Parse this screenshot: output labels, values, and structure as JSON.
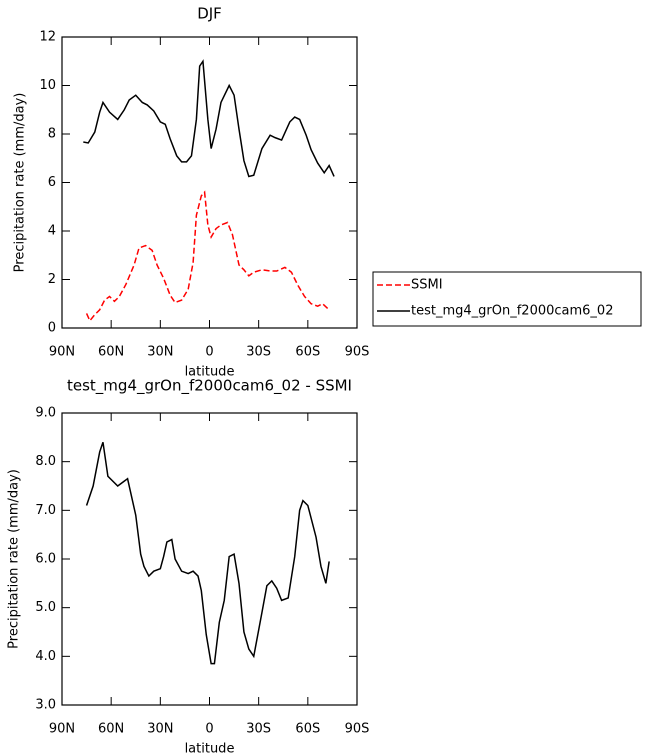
{
  "chart_data": [
    {
      "type": "line",
      "title": "DJF",
      "xlabel": "latitude",
      "ylabel": "Precipitation rate (mm/day)",
      "xlim": [
        90,
        -90
      ],
      "xticks": [
        {
          "value": 90,
          "label": "90N"
        },
        {
          "value": 60,
          "label": "60N"
        },
        {
          "value": 30,
          "label": "30N"
        },
        0,
        {
          "value": -30,
          "label": "30S"
        },
        {
          "value": -60,
          "label": "60S"
        },
        {
          "value": -90,
          "label": "90S"
        }
      ],
      "ylim": [
        0,
        12
      ],
      "yticks": [
        0,
        2,
        4,
        6,
        8,
        10,
        12
      ],
      "legend": "right",
      "series": [
        {
          "name": "SSMI",
          "color": "#ff0000",
          "dash": true,
          "x": [
            75,
            73,
            70,
            67,
            64,
            61,
            58,
            55,
            51,
            46,
            43,
            39,
            35,
            32,
            28,
            24,
            21,
            17,
            13,
            10,
            8,
            5,
            3,
            1,
            -1,
            -4,
            -7,
            -11,
            -14,
            -18,
            -21,
            -24,
            -27,
            -32,
            -37,
            -41,
            -46,
            -50,
            -54,
            -58,
            -62,
            -66,
            -69,
            -73
          ],
          "values": [
            0.6,
            0.3,
            0.55,
            0.75,
            1.15,
            1.3,
            1.1,
            1.3,
            1.8,
            2.6,
            3.3,
            3.4,
            3.2,
            2.6,
            2.05,
            1.35,
            1.05,
            1.15,
            1.6,
            2.7,
            4.65,
            5.45,
            5.6,
            4.25,
            3.75,
            4.1,
            4.25,
            4.35,
            3.85,
            2.6,
            2.4,
            2.15,
            2.3,
            2.4,
            2.35,
            2.35,
            2.5,
            2.3,
            1.75,
            1.3,
            1.0,
            0.9,
            1.0,
            0.75
          ]
        },
        {
          "name": "test_mg4_grOn_f2000cam6_02",
          "color": "#000000",
          "x": [
            77,
            74,
            70,
            67,
            65,
            61,
            56,
            52,
            49,
            45,
            41,
            38,
            34,
            30,
            27,
            24,
            20,
            17,
            14,
            11,
            8,
            6,
            4,
            1,
            -1,
            -4,
            -7,
            -12,
            -15,
            -18,
            -21,
            -24,
            -27,
            -32,
            -37,
            -40,
            -44,
            -49,
            -52,
            -55,
            -59,
            -62,
            -66,
            -70,
            -73,
            -76
          ],
          "values": [
            7.67,
            7.63,
            8.08,
            8.9,
            9.3,
            8.9,
            8.6,
            9.0,
            9.4,
            9.6,
            9.3,
            9.2,
            8.95,
            8.5,
            8.4,
            7.8,
            7.1,
            6.85,
            6.85,
            7.1,
            8.6,
            10.8,
            11.0,
            8.6,
            7.4,
            8.2,
            9.3,
            10.0,
            9.6,
            8.2,
            6.9,
            6.25,
            6.3,
            7.4,
            7.95,
            7.85,
            7.75,
            8.5,
            8.7,
            8.6,
            7.95,
            7.35,
            6.8,
            6.4,
            6.7,
            6.25
          ]
        }
      ]
    },
    {
      "type": "line",
      "title": "test_mg4_grOn_f2000cam6_02 - SSMI",
      "xlabel": "latitude",
      "ylabel": "Precipitation rate (mm/day)",
      "xlim": [
        90,
        -90
      ],
      "xticks": [
        {
          "value": 90,
          "label": "90N"
        },
        {
          "value": 60,
          "label": "60N"
        },
        {
          "value": 30,
          "label": "30N"
        },
        0,
        {
          "value": -30,
          "label": "30S"
        },
        {
          "value": -60,
          "label": "60S"
        },
        {
          "value": -90,
          "label": "90S"
        }
      ],
      "ylim": [
        3,
        9
      ],
      "yticks": [
        {
          "value": 3,
          "label": "3.0"
        },
        {
          "value": 4,
          "label": "4.0"
        },
        {
          "value": 5,
          "label": "5.0"
        },
        {
          "value": 6,
          "label": "6.0"
        },
        {
          "value": 7,
          "label": "7.0"
        },
        {
          "value": 8,
          "label": "8.0"
        },
        {
          "value": 9,
          "label": "9.0"
        }
      ],
      "series": [
        {
          "color": "#000000",
          "x": [
            75,
            71,
            67,
            65,
            62,
            56,
            52,
            50,
            45,
            42,
            40,
            37,
            34,
            30,
            28,
            26,
            23,
            21,
            17,
            13,
            10,
            7,
            5,
            2,
            -1,
            -3,
            -6,
            -9,
            -12,
            -15,
            -18,
            -21,
            -24,
            -27,
            -32,
            -35,
            -38,
            -41,
            -44,
            -48,
            -52,
            -55,
            -57,
            -60,
            -65,
            -68,
            -71,
            -73
          ],
          "values": [
            7.1,
            7.5,
            8.2,
            8.4,
            7.7,
            7.5,
            7.6,
            7.65,
            6.9,
            6.1,
            5.85,
            5.65,
            5.75,
            5.8,
            6.05,
            6.35,
            6.4,
            6.0,
            5.75,
            5.7,
            5.75,
            5.65,
            5.35,
            4.45,
            3.85,
            3.85,
            4.7,
            5.15,
            6.05,
            6.1,
            5.5,
            4.5,
            4.15,
            4.0,
            4.9,
            5.45,
            5.55,
            5.4,
            5.15,
            5.2,
            6.05,
            7.0,
            7.2,
            7.1,
            6.45,
            5.85,
            5.5,
            5.95
          ]
        }
      ]
    }
  ]
}
